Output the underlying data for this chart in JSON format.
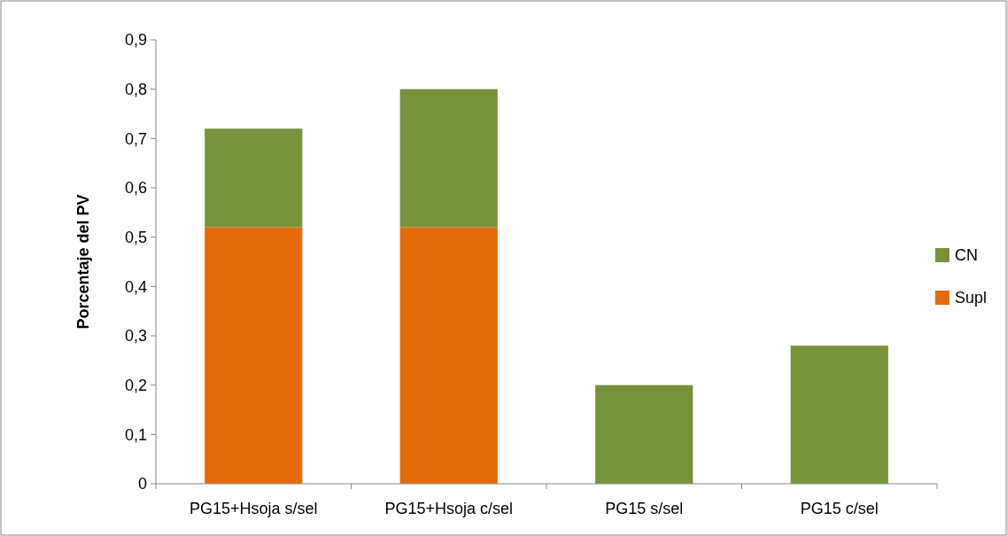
{
  "chart_data": {
    "type": "bar",
    "stacked": true,
    "ylabel": "Porcentaje del PV",
    "categories": [
      "PG15+Hsoja s/sel",
      "PG15+Hsoja c/sel",
      "PG15 s/sel",
      "PG15 c/sel"
    ],
    "series": [
      {
        "name": "Supl",
        "color": "#e36c09",
        "values": [
          0.52,
          0.52,
          0,
          0
        ]
      },
      {
        "name": "CN",
        "color": "#77933c",
        "values": [
          0.2,
          0.28,
          0.2,
          0.28
        ]
      }
    ],
    "ylim": [
      0,
      0.9
    ],
    "yticks": [
      {
        "value": 0,
        "label": "0"
      },
      {
        "value": 0.1,
        "label": "0,1"
      },
      {
        "value": 0.2,
        "label": "0,2"
      },
      {
        "value": 0.3,
        "label": "0,3"
      },
      {
        "value": 0.4,
        "label": "0,4"
      },
      {
        "value": 0.5,
        "label": "0,5"
      },
      {
        "value": 0.6,
        "label": "0,6"
      },
      {
        "value": 0.7,
        "label": "0,7"
      },
      {
        "value": 0.8,
        "label": "0,8"
      },
      {
        "value": 0.9,
        "label": "0,9"
      }
    ],
    "grid": false,
    "legend": "right"
  }
}
